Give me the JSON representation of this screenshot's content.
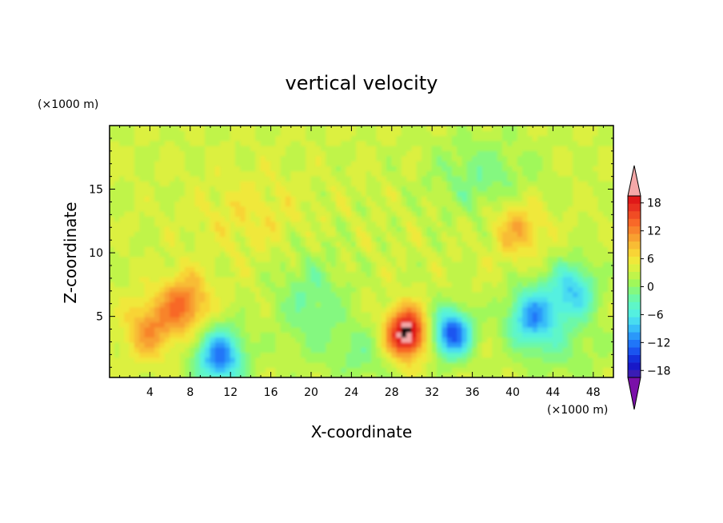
{
  "chart_data": {
    "type": "heatmap",
    "title": "vertical velocity",
    "xlabel": "X-coordinate",
    "ylabel": "Z-coordinate",
    "x_unit": "(×1000 m)",
    "y_unit": "(×1000 m)",
    "xlim": [
      0,
      50
    ],
    "ylim": [
      0.2,
      20
    ],
    "x_ticks": [
      4,
      8,
      12,
      16,
      20,
      24,
      28,
      32,
      36,
      40,
      44,
      48
    ],
    "y_ticks": [
      5,
      10,
      15
    ],
    "colorbar": {
      "levels": [
        -21,
        -19.5,
        -18,
        -16.5,
        -15,
        -13.5,
        -12,
        -10.5,
        -9,
        -7.5,
        -6,
        -4.5,
        -3,
        -1.5,
        0,
        1.5,
        3,
        4.5,
        6,
        7.5,
        9,
        10.5,
        12,
        13.5,
        15,
        16.5,
        18,
        19.5,
        21
      ],
      "tick_labels": [
        -18,
        -12,
        -6,
        0,
        6,
        12,
        18
      ],
      "extend": "both",
      "colors": [
        "#7a10a8",
        "#3a1cb4",
        "#1818c8",
        "#1430dc",
        "#1a54f0",
        "#2076f8",
        "#2a98fa",
        "#38bef8",
        "#48dcf0",
        "#54f0e0",
        "#5ef6c8",
        "#6cf8a8",
        "#84f880",
        "#a0f85a",
        "#c0f44a",
        "#dcf040",
        "#f0e83a",
        "#f8d436",
        "#f8bc34",
        "#f8a030",
        "#f8842c",
        "#f86828",
        "#f04c24",
        "#e83020",
        "#e01818",
        "#f4a8a8"
      ]
    },
    "features": [
      {
        "kind": "updraft",
        "x": 29.5,
        "z": 3.7,
        "peak": 18
      },
      {
        "kind": "downdraft",
        "x": 34,
        "z": 3.7,
        "peak": -16
      },
      {
        "kind": "downdraft",
        "x": 11,
        "z": 1.8,
        "peak": -14
      },
      {
        "kind": "updraft",
        "x": 7.5,
        "z": 6,
        "peak": 9
      },
      {
        "kind": "updraft",
        "x": 4,
        "z": 4,
        "peak": 7
      },
      {
        "kind": "downdraft",
        "x": 42,
        "z": 5,
        "peak": -12
      },
      {
        "kind": "downdraft",
        "x": 46,
        "z": 7,
        "peak": -10
      },
      {
        "kind": "updraft",
        "x": 40.5,
        "z": 12,
        "peak": 6
      }
    ]
  }
}
